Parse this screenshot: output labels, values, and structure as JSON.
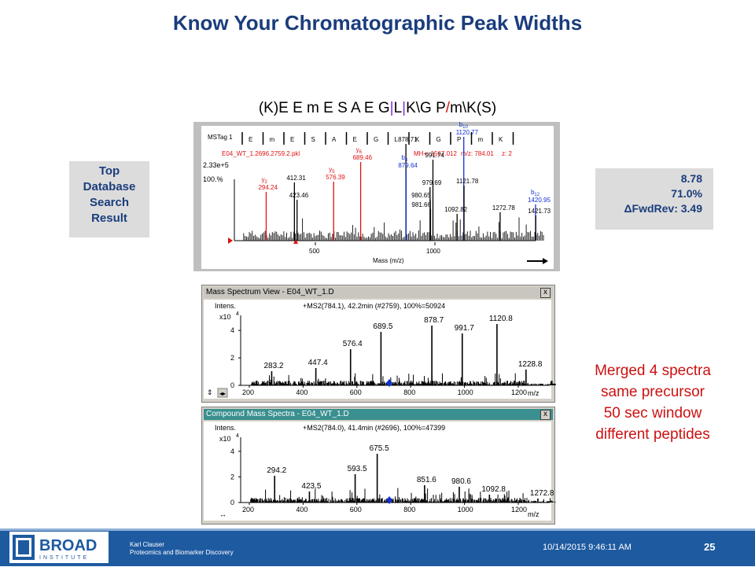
{
  "slide": {
    "title": "Know Your Chromatographic Peak Widths",
    "peptide": {
      "seq_a": "(K)E E m E S A E G",
      "sep1": "|",
      "seq_b": "L",
      "sep2": "|",
      "seq_c": "K\\G P",
      "sep3": "/",
      "seq_d": "m\\K(S)"
    },
    "top_box": [
      "Top",
      "Database",
      "Search",
      "Result"
    ],
    "score_box": {
      "score": "8.78",
      "pct": "71.0%",
      "fwdrev": "ΔFwdRev: 3.49"
    },
    "merged_note": [
      "Merged 4 spectra",
      "same precursor",
      "50 sec window",
      "different peptides"
    ]
  },
  "mstag": {
    "label": "MSTag 1",
    "residues": [
      "E",
      "m",
      "E",
      "S",
      "A",
      "E",
      "G",
      "L",
      "K",
      "G",
      "P",
      "m",
      "K"
    ],
    "file": "E04_WT_1.2696.2759.2.pkl",
    "mh": "MH+: 1567.012",
    "mz": "m/z: 784.01",
    "z": "z: 2",
    "ymax": "2.33e+5",
    "ypct": "100.%",
    "xlabel": "Mass (m/z)",
    "xticks": [
      "500",
      "1000"
    ],
    "ions": [
      {
        "ion": "y",
        "sub": "2",
        "mass": "294.24",
        "color": "#e01010"
      },
      {
        "ion": "",
        "sub": "",
        "mass": "412.31",
        "color": "#000000"
      },
      {
        "ion": "",
        "sub": "",
        "mass": "423.46",
        "color": "#000000"
      },
      {
        "ion": "y",
        "sub": "5",
        "mass": "576.39",
        "color": "#e01010"
      },
      {
        "ion": "y",
        "sub": "6",
        "mass": "689.46",
        "color": "#e01010"
      },
      {
        "ion": "",
        "sub": "",
        "mass": "878.71",
        "color": "#000000"
      },
      {
        "ion": "b",
        "sub": "8",
        "mass": "879.64",
        "color": "#1030d0"
      },
      {
        "ion": "",
        "sub": "",
        "mass": "991.74",
        "color": "#000000"
      },
      {
        "ion": "",
        "sub": "",
        "mass": "979.69",
        "color": "#000000"
      },
      {
        "ion": "",
        "sub": "",
        "mass": "980.65",
        "color": "#000000"
      },
      {
        "ion": "",
        "sub": "",
        "mass": "981.66",
        "color": "#000000"
      },
      {
        "ion": "",
        "sub": "",
        "mass": "1092.82",
        "color": "#000000"
      },
      {
        "ion": "b",
        "sub": "10",
        "mass": "1120.77",
        "color": "#1030d0"
      },
      {
        "ion": "",
        "sub": "",
        "mass": "1121.78",
        "color": "#000000"
      },
      {
        "ion": "",
        "sub": "",
        "mass": "1272.78",
        "color": "#000000"
      },
      {
        "ion": "b",
        "sub": "12",
        "mass": "1420.95",
        "color": "#1030d0"
      },
      {
        "ion": "",
        "sub": "",
        "mass": "1421.73",
        "color": "#000000"
      }
    ]
  },
  "window1": {
    "title": "Mass Spectrum View - E04_WT_1.D",
    "close": "x",
    "header": "+MS2(784.1), 42.2min (#2759), 100%=50924",
    "ylabel": "Intens.",
    "yscale": "x10",
    "yexp": "4",
    "yticks": [
      "4",
      "2",
      "0"
    ],
    "xticks": [
      "200",
      "400",
      "600",
      "800",
      "1000",
      "1200"
    ],
    "xunit": "m/z",
    "peaks": [
      "283.2",
      "447.4",
      "576.4",
      "689.5",
      "878.7",
      "991.7",
      "1120.8",
      "1228.8"
    ]
  },
  "window2": {
    "title": "Compound Mass Spectra - E04_WT_1.D",
    "close": "x",
    "header": "+MS2(784.0), 41.4min (#2696), 100%=47399",
    "ylabel": "Intens.",
    "yscale": "x10",
    "yexp": "4",
    "yticks": [
      "4",
      "2",
      "0"
    ],
    "xticks": [
      "200",
      "400",
      "600",
      "800",
      "1000",
      "1200"
    ],
    "xunit": "m/z",
    "peaks": [
      "294.2",
      "423.5",
      "593.5",
      "675.5",
      "851.6",
      "980.6",
      "1092.8",
      "1272.8"
    ]
  },
  "footer": {
    "logo_top": "BROAD",
    "logo_bottom": "INSTITUTE",
    "author": "Karl Clauser",
    "dept": "Proteomics and Biomarker Discovery",
    "datetime": "10/14/2015 9:46:11 AM",
    "page": "25"
  },
  "colors": {
    "title": "#1a3d7c",
    "note": "#cc1111",
    "footer": "#1e5aa0",
    "y_ion": "#e01010",
    "b_ion": "#1030d0"
  }
}
